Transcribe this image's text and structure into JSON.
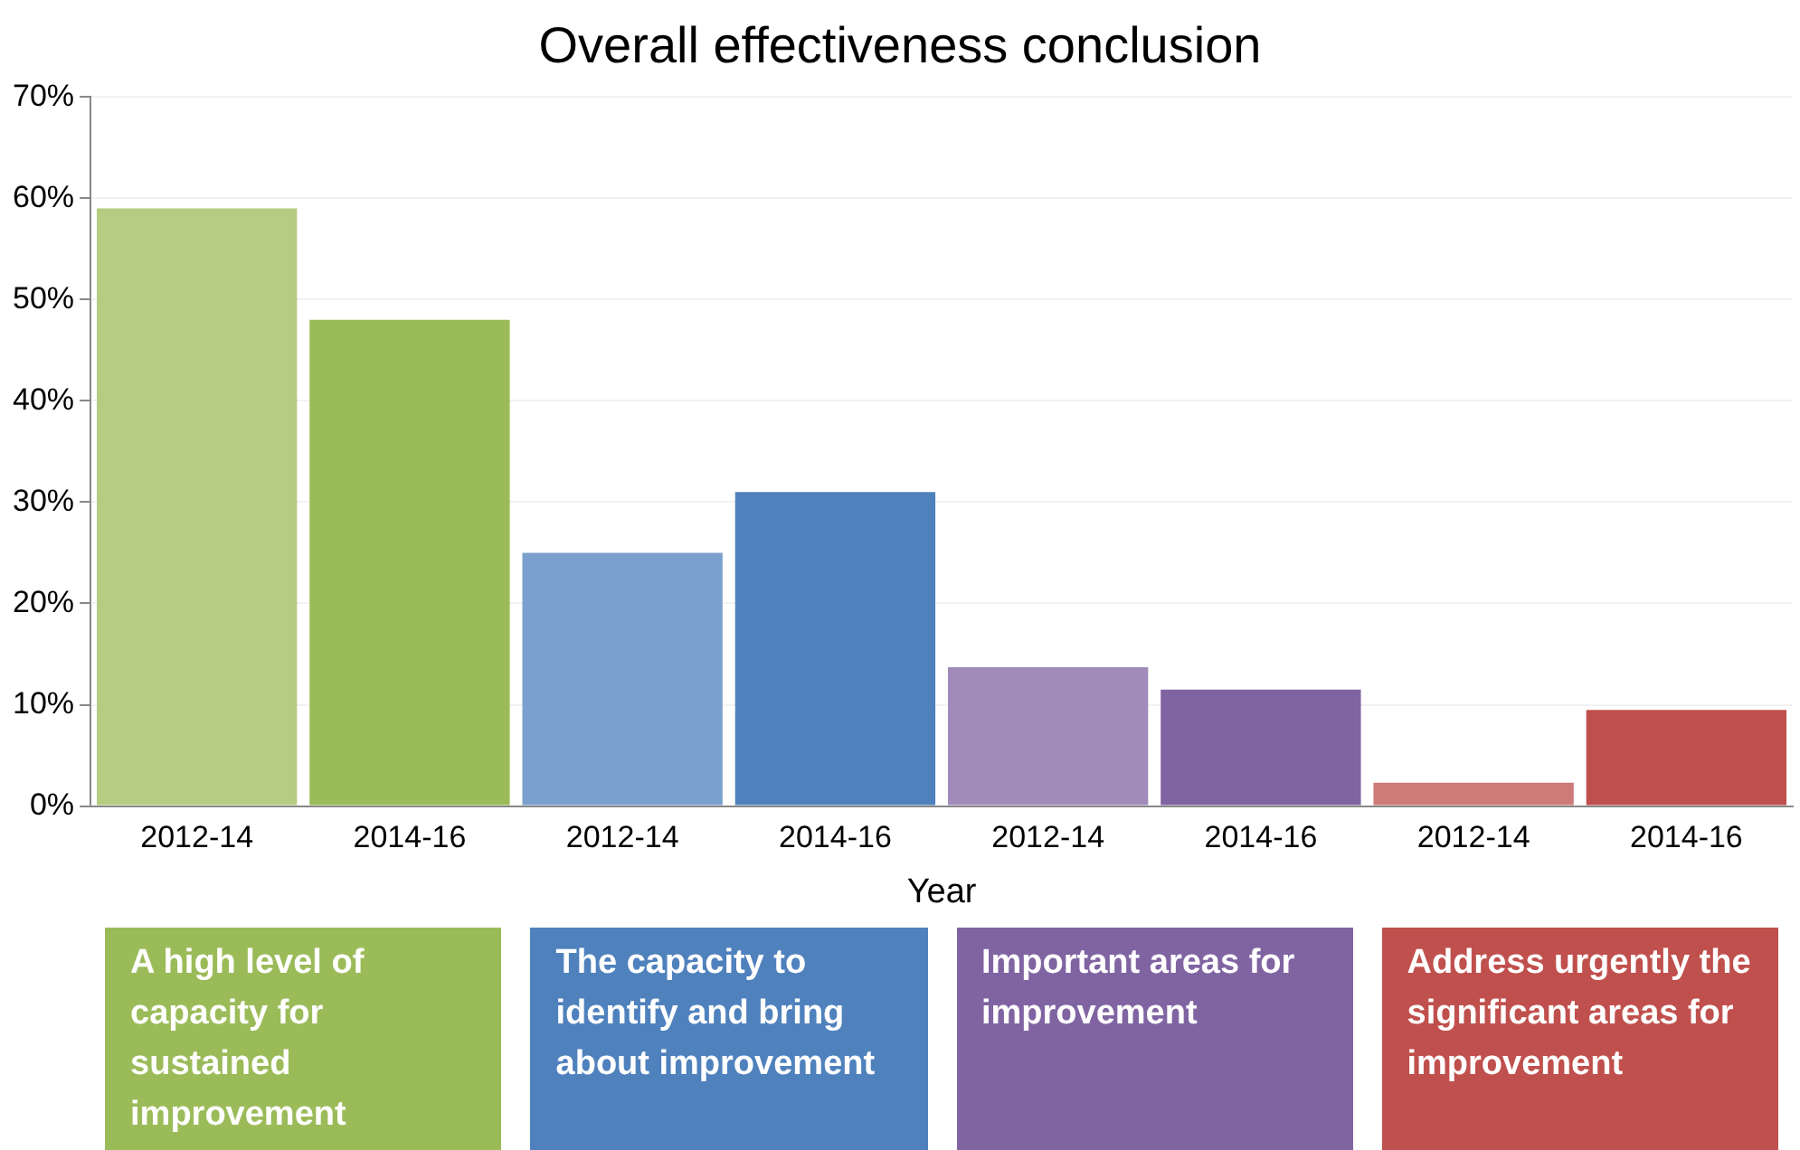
{
  "chart_data": {
    "type": "bar",
    "title": "Overall effectiveness conclusion",
    "xlabel": "Year",
    "categories": [
      "2012-14",
      "2014-16",
      "2012-14",
      "2014-16",
      "2012-14",
      "2014-16",
      "2012-14",
      "2014-16"
    ],
    "values": [
      59,
      48,
      25,
      31,
      13.7,
      11.5,
      2.3,
      9.5
    ],
    "colors": [
      "#b5cc81",
      "#9bbb59",
      "#7ba0cd",
      "#4f81bd",
      "#a08bb9",
      "#8064a2",
      "#cd7a78",
      "#c0504d"
    ],
    "annotations": [
      "A high level of capacity for sustained improvement",
      "The capacity to identify and bring about improvement",
      "Important areas for improvement",
      "Address urgently the significant areas for improvement"
    ],
    "ylim": [
      0,
      70
    ],
    "yticks": [
      {
        "value": 0,
        "label": "0%"
      },
      {
        "value": 10,
        "label": "10%"
      },
      {
        "value": 20,
        "label": "20%"
      },
      {
        "value": 30,
        "label": "30%"
      },
      {
        "value": 40,
        "label": "40%"
      },
      {
        "value": 50,
        "label": "50%"
      },
      {
        "value": 60,
        "label": "60%"
      },
      {
        "value": 70,
        "label": "70%"
      }
    ],
    "grid": "y"
  }
}
